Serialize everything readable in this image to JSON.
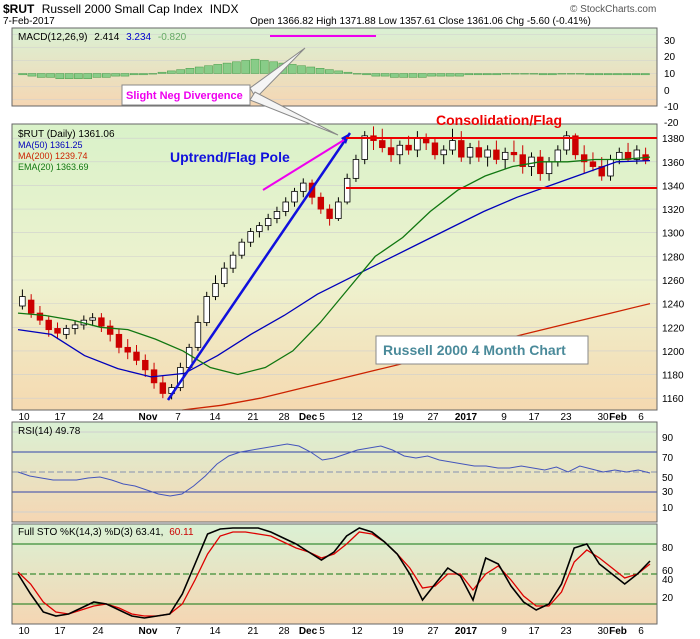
{
  "header": {
    "symbol": "$RUT",
    "name": "Russell 2000 Small Cap Index",
    "exchange": "INDX",
    "date": "7-Feb-2017",
    "ohlc_text": "Open 1366.82  High 1371.88  Low 1357.61  Close 1361.06  Chg -5.60 (-0.41%)",
    "watermark": "© StockCharts.com"
  },
  "macd_panel": {
    "label": "MACD(12,26,9)",
    "v1": "2.414",
    "v2": "3.234",
    "v3": "-0.820",
    "ticks": [
      "30",
      "20",
      "10",
      "0",
      "-10",
      "-20"
    ]
  },
  "price_panel": {
    "legend_main": "$RUT (Daily) 1361.06",
    "legend_ma50": "MA(50) 1361.25",
    "legend_ma200": "MA(200) 1239.74",
    "legend_ema20": "EMA(20) 1363.69",
    "ticks": [
      "1380",
      "1360",
      "1340",
      "1320",
      "1300",
      "1280",
      "1260",
      "1240",
      "1220",
      "1200",
      "1180",
      "1160"
    ],
    "annotations": {
      "neg_div": "Slight Neg Divergence",
      "uptrend": "Uptrend/Flag Pole",
      "consolidation": "Consolidation/Flag",
      "title_box": "Russell 2000 4 Month Chart"
    }
  },
  "rsi_panel": {
    "label": "RSI(14) 49.78",
    "ticks": [
      "90",
      "70",
      "50",
      "30",
      "10"
    ]
  },
  "sto_panel": {
    "label_prefix": "Full STO %K(14,3) %D(3) 63.41,",
    "label_d": "60.11",
    "ticks": [
      "80",
      "60",
      "40",
      "20"
    ]
  },
  "x_labels": [
    "10",
    "17",
    "24",
    "Nov",
    "7",
    "14",
    "21",
    "28",
    "Dec",
    "5",
    "12",
    "19",
    "27",
    "2017",
    "9",
    "17",
    "23",
    "30",
    "Feb",
    "6"
  ],
  "colors": {
    "up": "#000000",
    "down": "#cc0000",
    "ma50": "#0000bb",
    "ma200": "#cc2200",
    "ema20": "#117711",
    "magenta": "#ee00ee",
    "blue_line": "#1010dd",
    "annot_red": "#ee0000"
  },
  "chart_data": [
    {
      "type": "candlestick",
      "title": "$RUT (Daily)",
      "ylim": [
        1150,
        1392
      ],
      "series": [
        {
          "name": "$RUT (Daily)",
          "ohlc": [
            [
              1238,
              1252,
              1235,
              1246
            ],
            [
              1243,
              1248,
              1228,
              1232
            ],
            [
              1232,
              1238,
              1222,
              1226
            ],
            [
              1226,
              1230,
              1212,
              1218
            ],
            [
              1219,
              1224,
              1210,
              1215
            ],
            [
              1214,
              1222,
              1210,
              1219
            ],
            [
              1219,
              1226,
              1214,
              1222
            ],
            [
              1222,
              1230,
              1218,
              1226
            ],
            [
              1226,
              1232,
              1221,
              1228
            ],
            [
              1228,
              1232,
              1216,
              1221
            ],
            [
              1221,
              1226,
              1208,
              1214
            ],
            [
              1214,
              1219,
              1198,
              1203
            ],
            [
              1203,
              1210,
              1193,
              1199
            ],
            [
              1199,
              1205,
              1188,
              1192
            ],
            [
              1192,
              1197,
              1178,
              1184
            ],
            [
              1184,
              1190,
              1168,
              1173
            ],
            [
              1173,
              1179,
              1160,
              1164
            ],
            [
              1164,
              1172,
              1159,
              1169
            ],
            [
              1169,
              1190,
              1166,
              1186
            ],
            [
              1186,
              1206,
              1184,
              1203
            ],
            [
              1203,
              1230,
              1200,
              1224
            ],
            [
              1224,
              1250,
              1221,
              1246
            ],
            [
              1246,
              1264,
              1243,
              1257
            ],
            [
              1257,
              1275,
              1254,
              1270
            ],
            [
              1270,
              1284,
              1266,
              1281
            ],
            [
              1281,
              1295,
              1278,
              1292
            ],
            [
              1292,
              1304,
              1288,
              1301
            ],
            [
              1301,
              1309,
              1296,
              1306
            ],
            [
              1306,
              1316,
              1302,
              1312
            ],
            [
              1312,
              1322,
              1308,
              1318
            ],
            [
              1318,
              1330,
              1314,
              1326
            ],
            [
              1326,
              1338,
              1322,
              1335
            ],
            [
              1335,
              1346,
              1330,
              1342
            ],
            [
              1342,
              1345,
              1324,
              1330
            ],
            [
              1330,
              1334,
              1316,
              1320
            ],
            [
              1320,
              1324,
              1306,
              1312
            ],
            [
              1312,
              1330,
              1310,
              1326
            ],
            [
              1326,
              1350,
              1324,
              1346
            ],
            [
              1346,
              1366,
              1343,
              1362
            ],
            [
              1362,
              1386,
              1358,
              1382
            ],
            [
              1382,
              1390,
              1370,
              1378
            ],
            [
              1378,
              1388,
              1368,
              1372
            ],
            [
              1372,
              1380,
              1360,
              1366
            ],
            [
              1366,
              1378,
              1358,
              1374
            ],
            [
              1374,
              1382,
              1366,
              1370
            ],
            [
              1370,
              1386,
              1364,
              1380
            ],
            [
              1380,
              1384,
              1370,
              1376
            ],
            [
              1376,
              1380,
              1362,
              1366
            ],
            [
              1366,
              1374,
              1358,
              1370
            ],
            [
              1370,
              1388,
              1366,
              1378
            ],
            [
              1378,
              1386,
              1360,
              1364
            ],
            [
              1364,
              1376,
              1358,
              1372
            ],
            [
              1372,
              1378,
              1360,
              1364
            ],
            [
              1364,
              1374,
              1356,
              1370
            ],
            [
              1370,
              1378,
              1358,
              1362
            ],
            [
              1362,
              1372,
              1354,
              1368
            ],
            [
              1368,
              1378,
              1360,
              1366
            ],
            [
              1366,
              1374,
              1350,
              1356
            ],
            [
              1356,
              1368,
              1348,
              1364
            ],
            [
              1364,
              1370,
              1344,
              1350
            ],
            [
              1350,
              1364,
              1344,
              1360
            ],
            [
              1360,
              1374,
              1356,
              1370
            ],
            [
              1370,
              1386,
              1366,
              1382
            ],
            [
              1382,
              1384,
              1362,
              1366
            ],
            [
              1366,
              1374,
              1350,
              1360
            ],
            [
              1360,
              1368,
              1352,
              1356
            ],
            [
              1356,
              1364,
              1344,
              1348
            ],
            [
              1348,
              1366,
              1344,
              1362
            ],
            [
              1362,
              1372,
              1358,
              1368
            ],
            [
              1368,
              1376,
              1360,
              1362
            ],
            [
              1362,
              1374,
              1358,
              1370
            ],
            [
              1366,
              1372,
              1358,
              1361
            ]
          ]
        },
        {
          "name": "MA(50)",
          "values": [
            1218,
            1214,
            1196,
            1185,
            1178,
            1181,
            1196,
            1214,
            1230,
            1248,
            1262,
            1276,
            1290,
            1304,
            1318,
            1330,
            1340,
            1350,
            1360,
            1361
          ]
        },
        {
          "name": "MA(200)",
          "values": [
            1150,
            1154,
            1160,
            1168,
            1176,
            1184,
            1192,
            1200,
            1208,
            1216,
            1224,
            1232,
            1240
          ]
        },
        {
          "name": "EMA(20)",
          "values": [
            1232,
            1230,
            1226,
            1220,
            1218,
            1210,
            1200,
            1186,
            1180,
            1186,
            1200,
            1224,
            1252,
            1280,
            1296,
            1318,
            1336,
            1348,
            1356,
            1360,
            1360,
            1362,
            1362,
            1364
          ]
        }
      ]
    },
    {
      "type": "bar",
      "title": "MACD(12,26,9)",
      "ylim": [
        -25,
        35
      ],
      "series": [
        {
          "name": "Histogram",
          "values": [
            -1,
            -2,
            -3,
            -3,
            -4,
            -4,
            -4,
            -4,
            -3,
            -3,
            -2,
            -2,
            -1,
            -1,
            0,
            1,
            2,
            3,
            4,
            5,
            6,
            7,
            8,
            9,
            10,
            11,
            10,
            9,
            8,
            7,
            6,
            5,
            4,
            3,
            2,
            1,
            0,
            -1,
            -2,
            -2,
            -3,
            -3,
            -3,
            -3,
            -2,
            -2,
            -2,
            -2,
            -1,
            -1,
            -1,
            -1,
            0,
            0,
            0,
            0,
            -1,
            -1,
            0,
            0,
            0,
            -1,
            -1,
            -1,
            -1,
            -1,
            -1,
            -1
          ]
        }
      ]
    },
    {
      "type": "line",
      "title": "RSI(14)",
      "ylim": [
        0,
        100
      ],
      "series": [
        {
          "name": "RSI(14)",
          "values": [
            50,
            46,
            44,
            42,
            42,
            42,
            44,
            45,
            42,
            38,
            36,
            32,
            28,
            26,
            28,
            36,
            46,
            58,
            66,
            70,
            72,
            74,
            76,
            78,
            76,
            70,
            62,
            64,
            68,
            72,
            74,
            76,
            72,
            66,
            64,
            66,
            62,
            60,
            58,
            56,
            56,
            54,
            54,
            56,
            54,
            52,
            55,
            50,
            56,
            53,
            50,
            52,
            50,
            52,
            49
          ]
        }
      ]
    },
    {
      "type": "line",
      "title": "Full STO %K(14,3) %D(3)",
      "ylim": [
        0,
        100
      ],
      "series": [
        {
          "name": "%K",
          "values": [
            50,
            30,
            12,
            8,
            10,
            16,
            22,
            20,
            14,
            8,
            6,
            8,
            10,
            30,
            60,
            90,
            95,
            96,
            96,
            96,
            92,
            86,
            80,
            72,
            64,
            72,
            88,
            96,
            92,
            82,
            70,
            50,
            24,
            40,
            56,
            48,
            24,
            66,
            60,
            38,
            22,
            14,
            20,
            40,
            76,
            80,
            60,
            50,
            40,
            50,
            63
          ]
        },
        {
          "name": "%D",
          "values": [
            52,
            40,
            22,
            12,
            10,
            14,
            18,
            20,
            16,
            10,
            8,
            8,
            10,
            20,
            44,
            70,
            88,
            92,
            92,
            90,
            88,
            82,
            76,
            72,
            66,
            70,
            80,
            92,
            90,
            82,
            70,
            56,
            36,
            38,
            50,
            50,
            34,
            50,
            58,
            44,
            28,
            18,
            18,
            32,
            62,
            74,
            66,
            56,
            46,
            50,
            60
          ]
        }
      ]
    }
  ]
}
